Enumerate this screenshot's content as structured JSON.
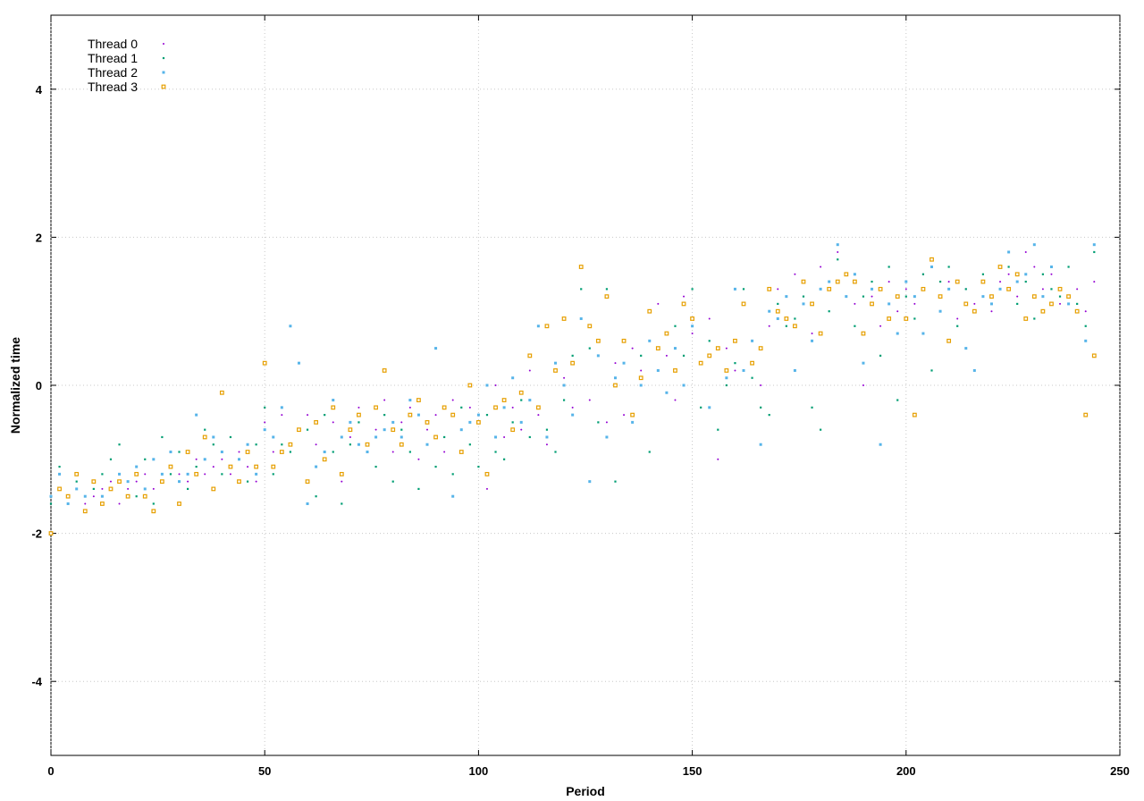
{
  "chart_data": {
    "type": "scatter",
    "x_label": "Period",
    "y_label": "Normalized time",
    "xlim": [
      0,
      250
    ],
    "xticks": [
      0,
      50,
      100,
      150,
      200,
      250
    ],
    "ylim": [
      -5,
      5
    ],
    "yticks": [
      -4,
      -2,
      0,
      2,
      4
    ],
    "grid": true,
    "legend": "top-left",
    "x": [
      0,
      2,
      4,
      6,
      8,
      10,
      12,
      14,
      16,
      18,
      20,
      22,
      24,
      26,
      28,
      30,
      32,
      34,
      36,
      38,
      40,
      42,
      44,
      46,
      48,
      50,
      52,
      54,
      56,
      58,
      60,
      62,
      64,
      66,
      68,
      70,
      72,
      74,
      76,
      78,
      80,
      82,
      84,
      86,
      88,
      90,
      92,
      94,
      96,
      98,
      100,
      102,
      104,
      106,
      108,
      110,
      112,
      114,
      116,
      118,
      120,
      122,
      124,
      126,
      128,
      130,
      132,
      134,
      136,
      138,
      140,
      142,
      144,
      146,
      148,
      150,
      152,
      154,
      156,
      158,
      160,
      162,
      164,
      166,
      168,
      170,
      172,
      174,
      176,
      178,
      180,
      182,
      184,
      186,
      188,
      190,
      192,
      194,
      196,
      198,
      200,
      202,
      204,
      206,
      208,
      210,
      212,
      214,
      216,
      218,
      220,
      222,
      224,
      226,
      228,
      230,
      232,
      234,
      236,
      238,
      240,
      242,
      244
    ],
    "series": [
      {
        "name": "Thread 0",
        "color": "#9400d3",
        "values": [
          -1.5,
          -1.4,
          -1.5,
          -1.4,
          -1.6,
          -1.5,
          -1.4,
          -1.3,
          -1.6,
          -1.4,
          -1.3,
          -1.2,
          -1.4,
          -1.3,
          -1.1,
          -1.2,
          -1.3,
          -1.0,
          -1.2,
          -1.1,
          -1.0,
          -1.2,
          -0.9,
          -1.1,
          -1.3,
          -0.5,
          -0.9,
          -0.4,
          0.8,
          -0.6,
          -0.4,
          -0.8,
          -1.0,
          -0.5,
          -1.3,
          -0.7,
          -0.3,
          -0.9,
          -0.6,
          -0.2,
          -0.9,
          -0.5,
          -0.3,
          -1.0,
          -0.6,
          -0.4,
          -0.9,
          -0.2,
          -0.6,
          -0.3,
          -0.5,
          -1.4,
          0.0,
          -0.7,
          -0.3,
          -0.6,
          0.2,
          -0.4,
          -0.8,
          0.3,
          0.1,
          -0.3,
          0.9,
          -0.2,
          0.6,
          -0.5,
          0.3,
          -0.4,
          0.5,
          0.2,
          0.6,
          1.1,
          0.4,
          -0.2,
          1.2,
          0.7,
          0.3,
          0.9,
          -1.0,
          0.5,
          0.2,
          1.1,
          0.6,
          0.0,
          0.8,
          1.3,
          0.9,
          1.5,
          1.2,
          0.7,
          1.6,
          1.4,
          1.8,
          1.5,
          1.1,
          0.0,
          1.2,
          0.8,
          1.4,
          1.0,
          1.3,
          1.1,
          1.5,
          1.7,
          1.2,
          1.4,
          0.9,
          1.3,
          1.1,
          1.2,
          1.0,
          1.4,
          1.5,
          1.2,
          1.8,
          1.6,
          1.3,
          1.5,
          1.1,
          1.2,
          1.3,
          1.0,
          1.4
        ]
      },
      {
        "name": "Thread 1",
        "color": "#009e73",
        "values": [
          -1.6,
          -1.1,
          -1.5,
          -1.3,
          -1.5,
          -1.4,
          -1.2,
          -1.0,
          -0.8,
          -1.3,
          -1.5,
          -1.0,
          -1.6,
          -0.7,
          -1.2,
          -0.9,
          -1.4,
          -1.1,
          -0.6,
          -0.8,
          -1.2,
          -0.7,
          -1.0,
          -1.3,
          -0.8,
          -0.3,
          -1.2,
          -0.8,
          -0.9,
          0.3,
          -0.6,
          -1.5,
          -0.4,
          -0.9,
          -1.6,
          -0.8,
          -0.5,
          -0.9,
          -1.1,
          -0.4,
          -1.3,
          -0.6,
          -0.9,
          -1.4,
          -0.5,
          -1.1,
          -0.7,
          -1.2,
          -0.3,
          -0.8,
          -1.1,
          -0.4,
          -0.9,
          -1.0,
          -0.5,
          -0.2,
          -0.7,
          -0.3,
          -0.6,
          -0.9,
          -0.2,
          0.4,
          1.3,
          0.5,
          -0.5,
          1.3,
          -1.3,
          0.3,
          -0.4,
          0.4,
          -0.9,
          0.2,
          -0.1,
          0.8,
          0.4,
          1.3,
          -0.3,
          0.6,
          -0.6,
          0.0,
          0.3,
          1.3,
          0.1,
          -0.3,
          -0.4,
          1.1,
          0.8,
          0.9,
          1.2,
          -0.3,
          -0.6,
          1.0,
          1.7,
          1.5,
          0.8,
          1.2,
          1.4,
          0.4,
          1.6,
          -0.2,
          1.2,
          0.9,
          1.5,
          0.2,
          1.4,
          1.6,
          0.8,
          1.3,
          1.0,
          1.5,
          1.2,
          1.3,
          1.6,
          1.1,
          1.4,
          0.9,
          1.5,
          1.3,
          1.2,
          1.6,
          1.1,
          0.8,
          1.8
        ]
      },
      {
        "name": "Thread 2",
        "color": "#56b4e9",
        "values": [
          -1.5,
          -1.2,
          -1.6,
          -1.4,
          -1.5,
          -1.3,
          -1.5,
          -1.4,
          -1.2,
          -1.3,
          -1.1,
          -1.4,
          -1.0,
          -1.2,
          -0.9,
          -1.3,
          -1.2,
          -0.4,
          -1.0,
          -0.7,
          -0.9,
          -1.1,
          -1.0,
          -0.8,
          -1.2,
          -0.6,
          -0.7,
          -0.3,
          0.8,
          0.3,
          -1.6,
          -1.1,
          -0.9,
          -0.2,
          -0.7,
          -0.5,
          -0.8,
          -0.9,
          -0.7,
          -0.6,
          -0.5,
          -0.7,
          -0.2,
          -0.4,
          -0.8,
          0.5,
          -0.3,
          -1.5,
          -0.6,
          -0.5,
          -0.4,
          0.0,
          -0.7,
          -0.3,
          0.1,
          -0.5,
          -0.2,
          0.8,
          -0.7,
          0.3,
          0.0,
          -0.4,
          0.9,
          -1.3,
          0.4,
          -0.7,
          0.1,
          0.3,
          -0.5,
          0.0,
          0.6,
          0.2,
          -0.1,
          0.5,
          0.0,
          0.8,
          0.3,
          -0.3,
          0.5,
          0.1,
          1.3,
          0.2,
          0.6,
          -0.8,
          1.0,
          0.9,
          1.2,
          0.2,
          1.1,
          0.6,
          1.3,
          1.4,
          1.9,
          1.2,
          1.5,
          0.3,
          1.3,
          -0.8,
          1.1,
          0.7,
          1.4,
          1.2,
          0.7,
          1.6,
          1.0,
          1.3,
          1.4,
          0.5,
          0.2,
          1.2,
          1.1,
          1.3,
          1.8,
          1.4,
          1.5,
          1.9,
          1.2,
          1.6,
          1.3,
          1.1,
          1.0,
          0.6,
          1.9
        ]
      },
      {
        "name": "Thread 3",
        "color": "#e69f00",
        "values": [
          -2.0,
          -1.4,
          -1.5,
          -1.2,
          -1.7,
          -1.3,
          -1.6,
          -1.4,
          -1.3,
          -1.5,
          -1.2,
          -1.5,
          -1.7,
          -1.3,
          -1.1,
          -1.6,
          -0.9,
          -1.2,
          -0.7,
          -1.4,
          -0.1,
          -1.1,
          -1.3,
          -0.9,
          -1.1,
          0.3,
          -1.1,
          -0.9,
          -0.8,
          -0.6,
          -1.3,
          -0.5,
          -1.0,
          -0.3,
          -1.2,
          -0.6,
          -0.4,
          -0.8,
          -0.3,
          0.2,
          -0.6,
          -0.8,
          -0.4,
          -0.2,
          -0.5,
          -0.7,
          -0.3,
          -0.4,
          -0.9,
          0.0,
          -0.5,
          -1.2,
          -0.3,
          -0.2,
          -0.6,
          -0.1,
          0.4,
          -0.3,
          0.8,
          0.2,
          0.9,
          0.3,
          1.6,
          0.8,
          0.6,
          1.2,
          0.0,
          0.6,
          -0.4,
          0.1,
          1.0,
          0.5,
          0.7,
          0.2,
          1.1,
          0.9,
          0.3,
          0.4,
          0.5,
          0.2,
          0.6,
          1.1,
          0.3,
          0.5,
          1.3,
          1.0,
          0.9,
          0.8,
          1.4,
          1.1,
          0.7,
          1.3,
          1.4,
          1.5,
          1.4,
          0.7,
          1.1,
          1.3,
          0.9,
          1.2,
          0.9,
          -0.4,
          1.3,
          1.7,
          1.2,
          0.6,
          1.4,
          1.1,
          1.0,
          1.4,
          1.2,
          1.6,
          1.3,
          1.5,
          0.9,
          1.2,
          1.0,
          1.1,
          1.3,
          1.2,
          1.0,
          -0.4,
          0.4
        ]
      }
    ]
  }
}
